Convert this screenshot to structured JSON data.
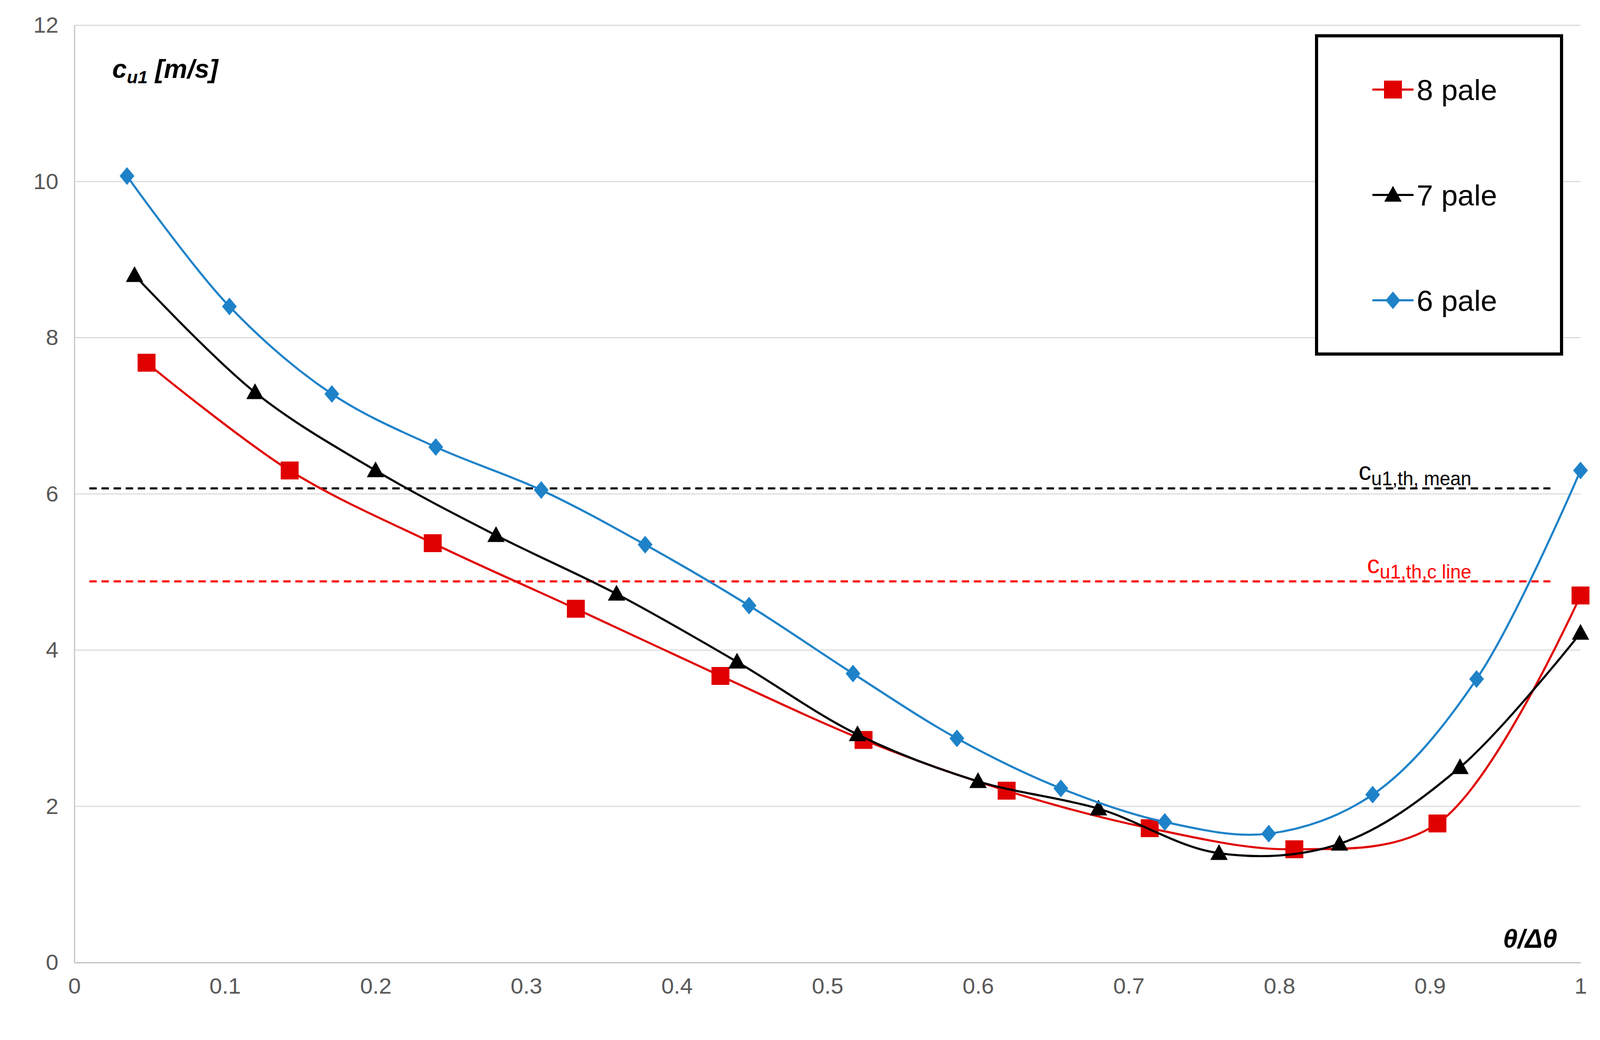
{
  "chart_data": {
    "type": "line",
    "x_label": "θ/Δθ",
    "y_label": {
      "text": "c",
      "sub": "u1",
      "after": " [m/s]"
    },
    "xlim": [
      0,
      1
    ],
    "xticks": [
      0,
      0.1,
      0.2,
      0.3,
      0.4,
      0.5,
      0.6,
      0.7,
      0.8,
      0.9,
      1
    ],
    "ylim": [
      0,
      12
    ],
    "yticks": [
      0,
      2,
      4,
      6,
      8,
      10,
      12
    ],
    "grid": true,
    "legend": "top-right",
    "series": [
      {
        "name": "8 pale",
        "color": "#e00000",
        "marker": "square",
        "line_style": "solid",
        "x": [
          0.048,
          0.143,
          0.238,
          0.333,
          0.429,
          0.524,
          0.619,
          0.714,
          0.81,
          0.905,
          1.0
        ],
        "values": [
          7.68,
          6.3,
          5.37,
          4.53,
          3.67,
          2.85,
          2.2,
          1.72,
          1.45,
          1.78,
          4.7
        ]
      },
      {
        "name": "7 pale",
        "color": "#000000",
        "marker": "triangle",
        "line_style": "solid",
        "x": [
          0.04,
          0.12,
          0.2,
          0.28,
          0.36,
          0.44,
          0.52,
          0.6,
          0.68,
          0.76,
          0.84,
          0.92,
          1.0
        ],
        "values": [
          8.8,
          7.3,
          6.3,
          5.47,
          4.72,
          3.85,
          2.92,
          2.32,
          1.97,
          1.4,
          1.52,
          2.5,
          4.22
        ]
      },
      {
        "name": "6 pale",
        "color": "#1e82c8",
        "marker": "diamond",
        "line_style": "solid",
        "x": [
          0.035,
          0.103,
          0.171,
          0.24,
          0.31,
          0.379,
          0.448,
          0.517,
          0.586,
          0.655,
          0.724,
          0.793,
          0.862,
          0.931,
          1.0
        ],
        "values": [
          10.07,
          8.4,
          7.28,
          6.6,
          6.05,
          5.35,
          4.57,
          3.7,
          2.87,
          2.23,
          1.8,
          1.65,
          2.15,
          3.63,
          6.3
        ]
      }
    ],
    "annotations": [
      {
        "text": "c",
        "sub": "u1,th, mean",
        "y": 6.07,
        "x": [
          0.01,
          0.98
        ],
        "color": "#000000",
        "line_style": "dashed"
      },
      {
        "text": "c",
        "sub": "u1,th,c line",
        "y": 4.88,
        "x": [
          0.01,
          0.98
        ],
        "color": "#ff0000",
        "line_style": "dashed"
      }
    ]
  }
}
